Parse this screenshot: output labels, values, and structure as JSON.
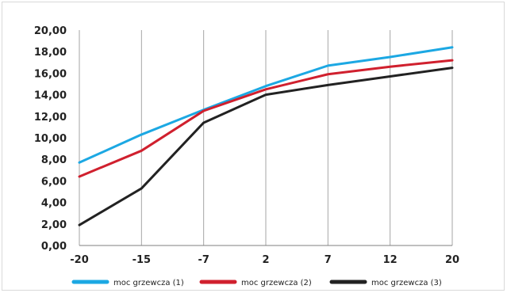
{
  "chart_data": {
    "type": "line",
    "categories": [
      "-20",
      "-15",
      "-7",
      "2",
      "7",
      "12",
      "20"
    ],
    "ylim": [
      0,
      20
    ],
    "yticks": [
      "0,00",
      "2,00",
      "4,00",
      "6,00",
      "8,00",
      "10,00",
      "12,00",
      "14,00",
      "16,00",
      "18,00",
      "20,00"
    ],
    "grid": "vertical",
    "legend_position": "bottom",
    "series": [
      {
        "name": "moc grzewcza (1)",
        "color": "#1ca8e3",
        "values": [
          7.7,
          10.3,
          12.6,
          14.8,
          16.7,
          17.5,
          18.4
        ]
      },
      {
        "name": "moc grzewcza (2)",
        "color": "#d0202e",
        "values": [
          6.4,
          8.8,
          12.5,
          14.5,
          15.9,
          16.6,
          17.2
        ]
      },
      {
        "name": "moc grzewcza (3)",
        "color": "#222222",
        "values": [
          1.9,
          5.3,
          11.4,
          14.0,
          14.9,
          15.7,
          16.5
        ]
      }
    ]
  }
}
